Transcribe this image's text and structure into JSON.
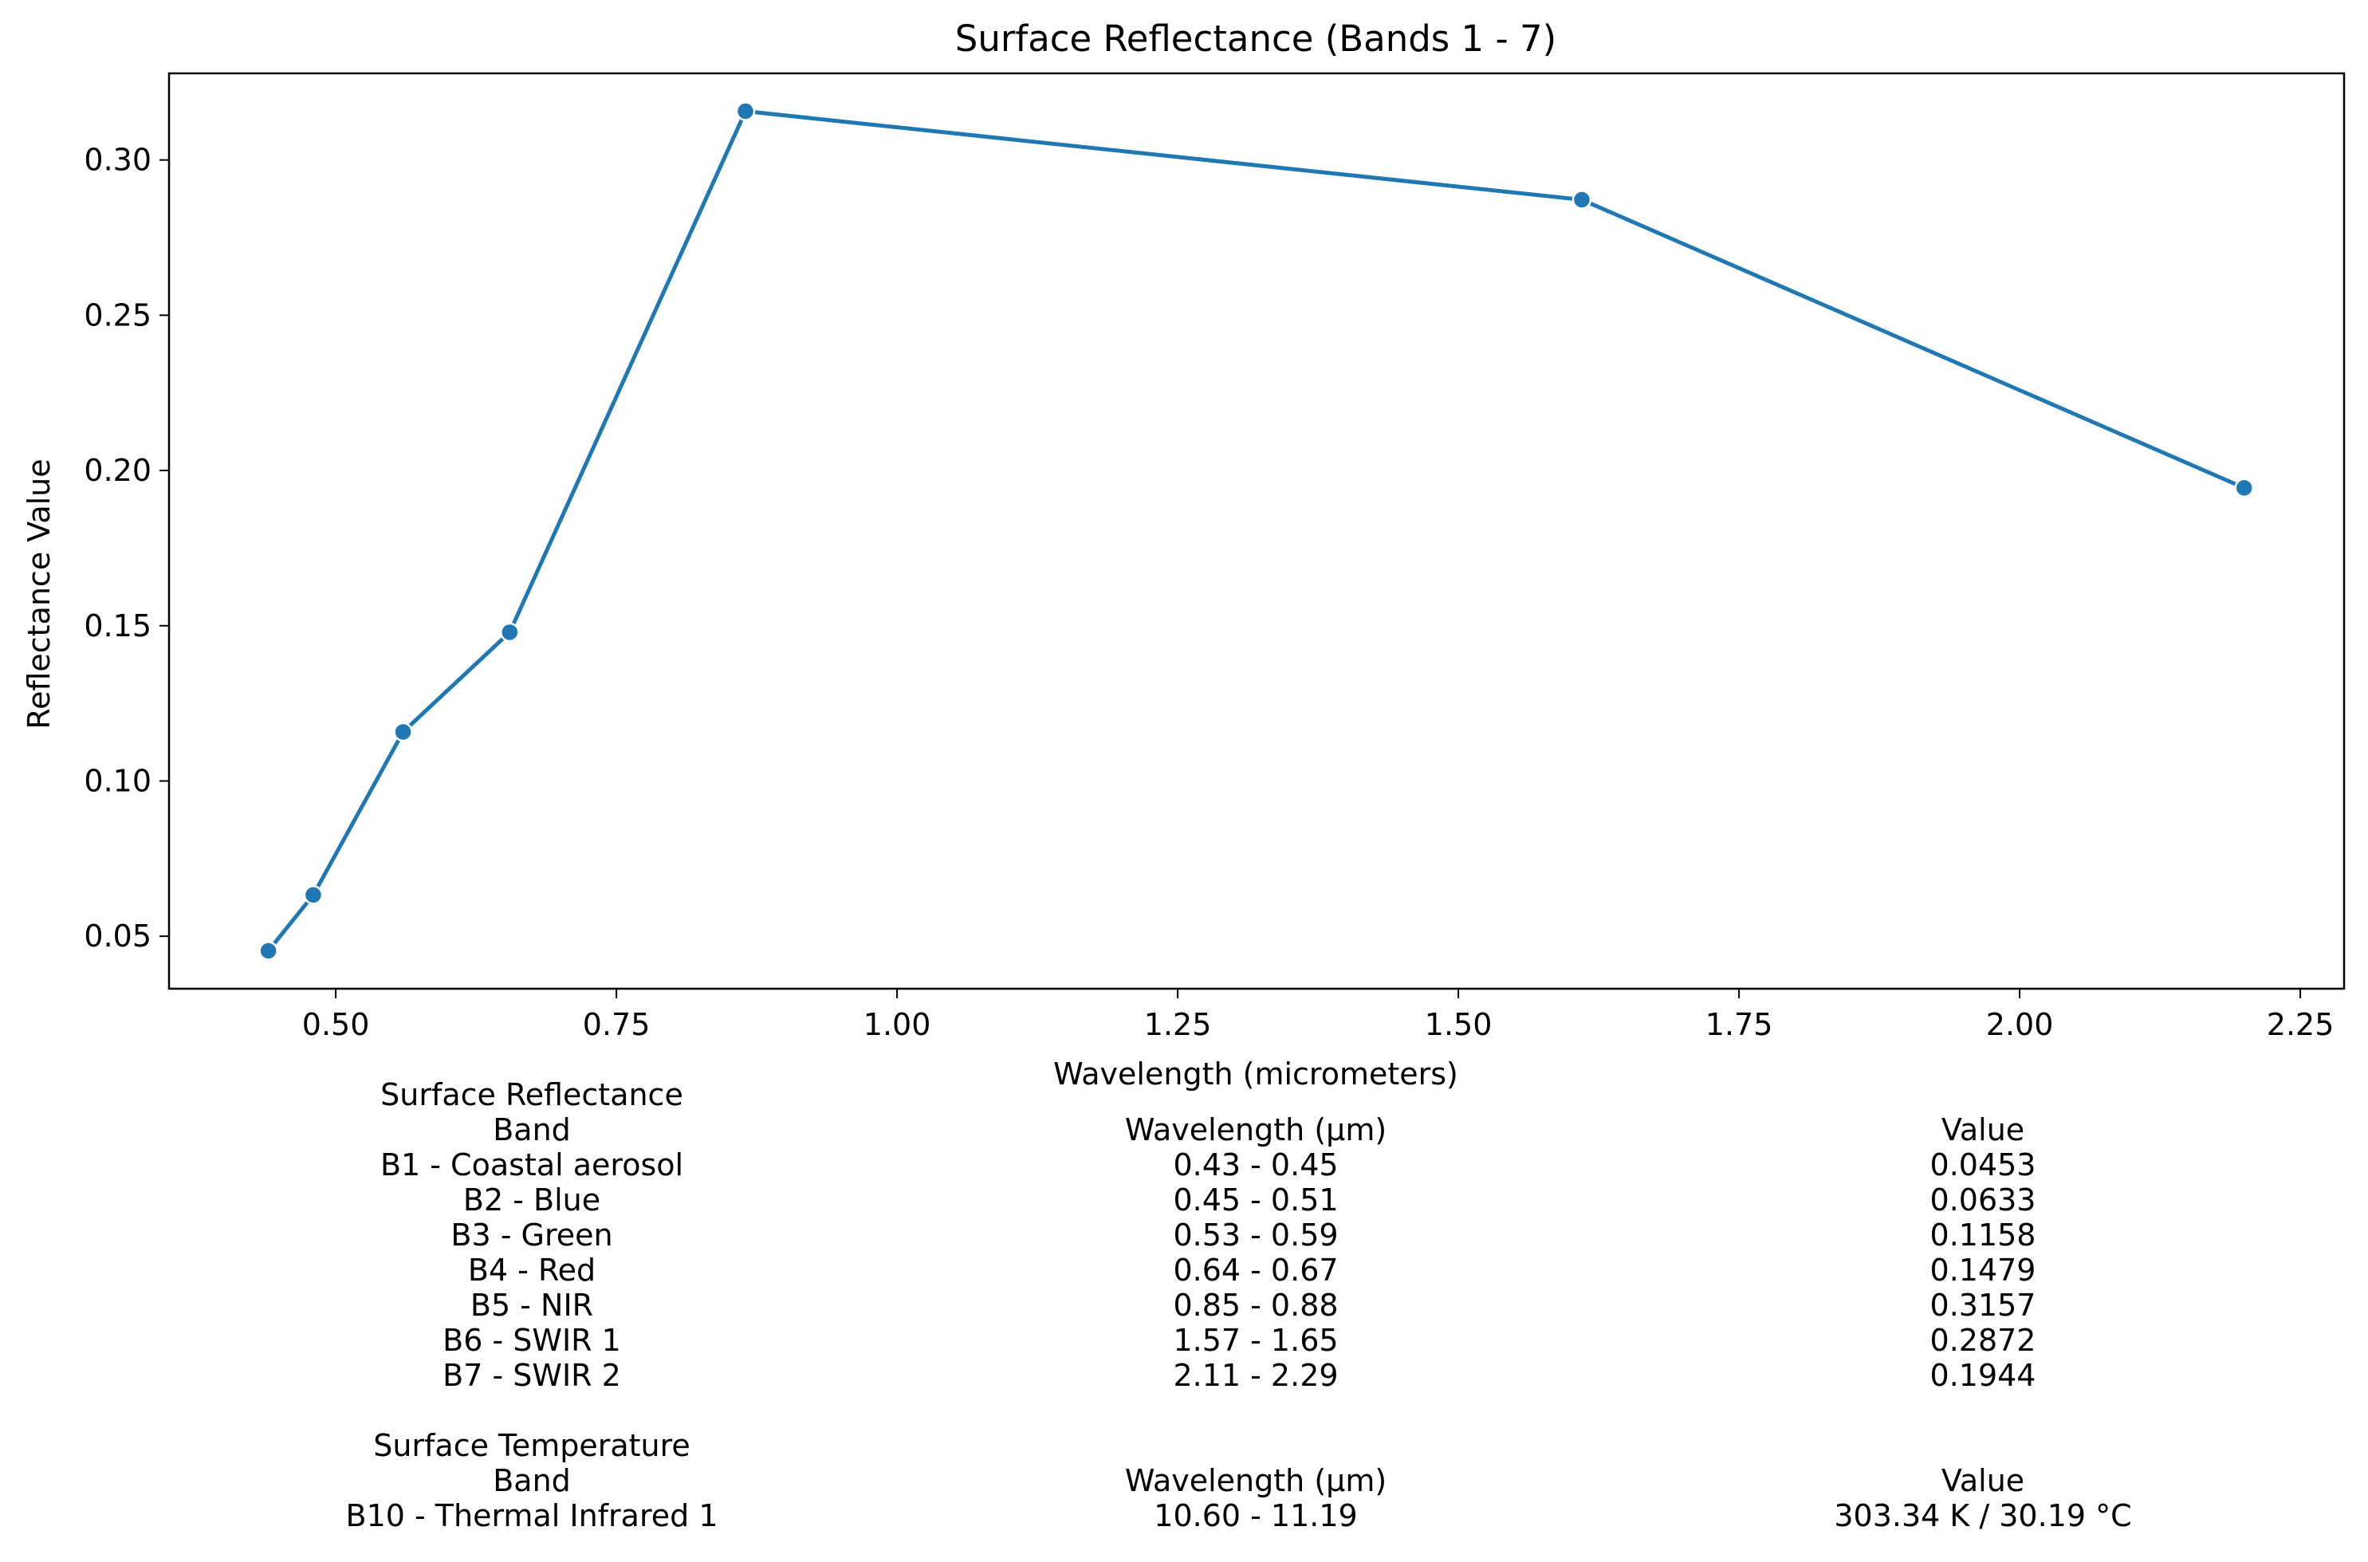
{
  "chart_data": {
    "type": "line",
    "title": "Surface Reflectance (Bands 1 - 7)",
    "xlabel": "Wavelength (micrometers)",
    "ylabel": "Reflectance Value",
    "xlim": [
      0.3515,
      2.289
    ],
    "ylim": [
      0.0331,
      0.3279
    ],
    "x_ticks": [
      "0.50",
      "0.75",
      "1.00",
      "1.25",
      "1.50",
      "1.75",
      "2.00",
      "2.25"
    ],
    "y_ticks": [
      "0.05",
      "0.10",
      "0.15",
      "0.20",
      "0.25",
      "0.30"
    ],
    "grid": false,
    "series": [
      {
        "color": "#1f77b4",
        "x": [
          0.44,
          0.48,
          0.56,
          0.655,
          0.865,
          1.61,
          2.2
        ],
        "y": [
          0.0453,
          0.0633,
          0.1158,
          0.1479,
          0.3157,
          0.2872,
          0.1944
        ]
      }
    ]
  },
  "reflectance_table": {
    "title": "Surface Reflectance",
    "headers": [
      "Band",
      "Wavelength (µm)",
      "Value"
    ],
    "rows": [
      [
        "B1 - Coastal aerosol",
        "0.43 - 0.45",
        "0.0453"
      ],
      [
        "B2 - Blue",
        "0.45 - 0.51",
        "0.0633"
      ],
      [
        "B3 - Green",
        "0.53 - 0.59",
        "0.1158"
      ],
      [
        "B4 - Red",
        "0.64 - 0.67",
        "0.1479"
      ],
      [
        "B5 - NIR",
        "0.85 - 0.88",
        "0.3157"
      ],
      [
        "B6 - SWIR 1",
        "1.57 - 1.65",
        "0.2872"
      ],
      [
        "B7 - SWIR 2",
        "2.11 - 2.29",
        "0.1944"
      ]
    ]
  },
  "temperature_table": {
    "title": "Surface Temperature",
    "headers": [
      "Band",
      "Wavelength (µm)",
      "Value"
    ],
    "rows": [
      [
        "B10 - Thermal Infrared 1",
        "10.60 - 11.19",
        "303.34 K / 30.19 °C"
      ]
    ]
  }
}
